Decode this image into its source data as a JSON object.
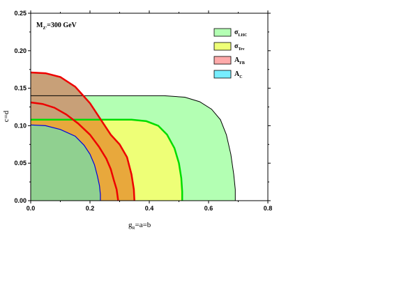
{
  "chart_data": {
    "type": "area",
    "xlabel_main": "g",
    "xlabel_sub": "R",
    "xlabel_rest": "=a=b",
    "ylabel": "c=d",
    "annotation_main": "M",
    "annotation_sub": "Z'",
    "annotation_rest": "=300 GeV",
    "xlim": [
      0,
      0.8
    ],
    "ylim": [
      0,
      0.25
    ],
    "xticks": [
      "0.0",
      "0.2",
      "0.4",
      "0.6",
      "0.8"
    ],
    "yticks": [
      "0.00",
      "0.05",
      "0.10",
      "0.15",
      "0.20",
      "0.25"
    ],
    "legend_position": "top-right",
    "series": [
      {
        "key": "lhc",
        "name_main": "σ",
        "name_sub": "LHC",
        "fill": "#b3ffb3",
        "stroke": "#000000",
        "points": [
          [
            0,
            0.14
          ],
          [
            0.45,
            0.14
          ],
          [
            0.52,
            0.138
          ],
          [
            0.57,
            0.132
          ],
          [
            0.61,
            0.122
          ],
          [
            0.64,
            0.108
          ],
          [
            0.66,
            0.088
          ],
          [
            0.675,
            0.062
          ],
          [
            0.685,
            0.035
          ],
          [
            0.69,
            0.015
          ],
          [
            0.69,
            0
          ]
        ]
      },
      {
        "key": "tev",
        "name_main": "σ",
        "name_sub": "Tev",
        "fill": "#eeff77",
        "stroke": "#00dd00",
        "points": [
          [
            0,
            0.108
          ],
          [
            0.34,
            0.108
          ],
          [
            0.39,
            0.106
          ],
          [
            0.43,
            0.1
          ],
          [
            0.46,
            0.088
          ],
          [
            0.485,
            0.07
          ],
          [
            0.5,
            0.05
          ],
          [
            0.508,
            0.03
          ],
          [
            0.511,
            0.012
          ],
          [
            0.511,
            0
          ]
        ]
      },
      {
        "key": "afb",
        "name_main": "A",
        "name_sub": "FB",
        "fill": "#ffaaaa",
        "stroke": "#ee0000",
        "points": [
          [
            0,
            0.171
          ],
          [
            0.05,
            0.17
          ],
          [
            0.1,
            0.165
          ],
          [
            0.15,
            0.152
          ],
          [
            0.2,
            0.13
          ],
          [
            0.24,
            0.106
          ],
          [
            0.27,
            0.088
          ],
          [
            0.3,
            0.075
          ],
          [
            0.325,
            0.058
          ],
          [
            0.34,
            0.035
          ],
          [
            0.348,
            0.015
          ],
          [
            0.35,
            0
          ]
        ]
      },
      {
        "key": "ac",
        "name_main": "A",
        "name_sub": "C",
        "fill": "#77eeff",
        "stroke": "#0000dd",
        "points": [
          [
            0,
            0.101
          ],
          [
            0.05,
            0.1
          ],
          [
            0.1,
            0.095
          ],
          [
            0.15,
            0.086
          ],
          [
            0.18,
            0.074
          ],
          [
            0.2,
            0.062
          ],
          [
            0.215,
            0.048
          ],
          [
            0.225,
            0.033
          ],
          [
            0.232,
            0.02
          ],
          [
            0.235,
            0.008
          ],
          [
            0.235,
            0
          ]
        ]
      }
    ],
    "inner_curve_stroke": "#ee0000",
    "inner_curve": [
      [
        0,
        0.131
      ],
      [
        0.04,
        0.129
      ],
      [
        0.08,
        0.124
      ],
      [
        0.12,
        0.115
      ],
      [
        0.16,
        0.103
      ],
      [
        0.2,
        0.088
      ],
      [
        0.23,
        0.072
      ],
      [
        0.255,
        0.056
      ],
      [
        0.27,
        0.042
      ],
      [
        0.28,
        0.028
      ],
      [
        0.29,
        0.015
      ],
      [
        0.295,
        0
      ]
    ],
    "overlap_fills": {
      "lhc_tev": "#a8e07a",
      "afb_only": "#c8a078",
      "afb_tev": "#e8a83c",
      "ac_region": "#90d090"
    }
  }
}
